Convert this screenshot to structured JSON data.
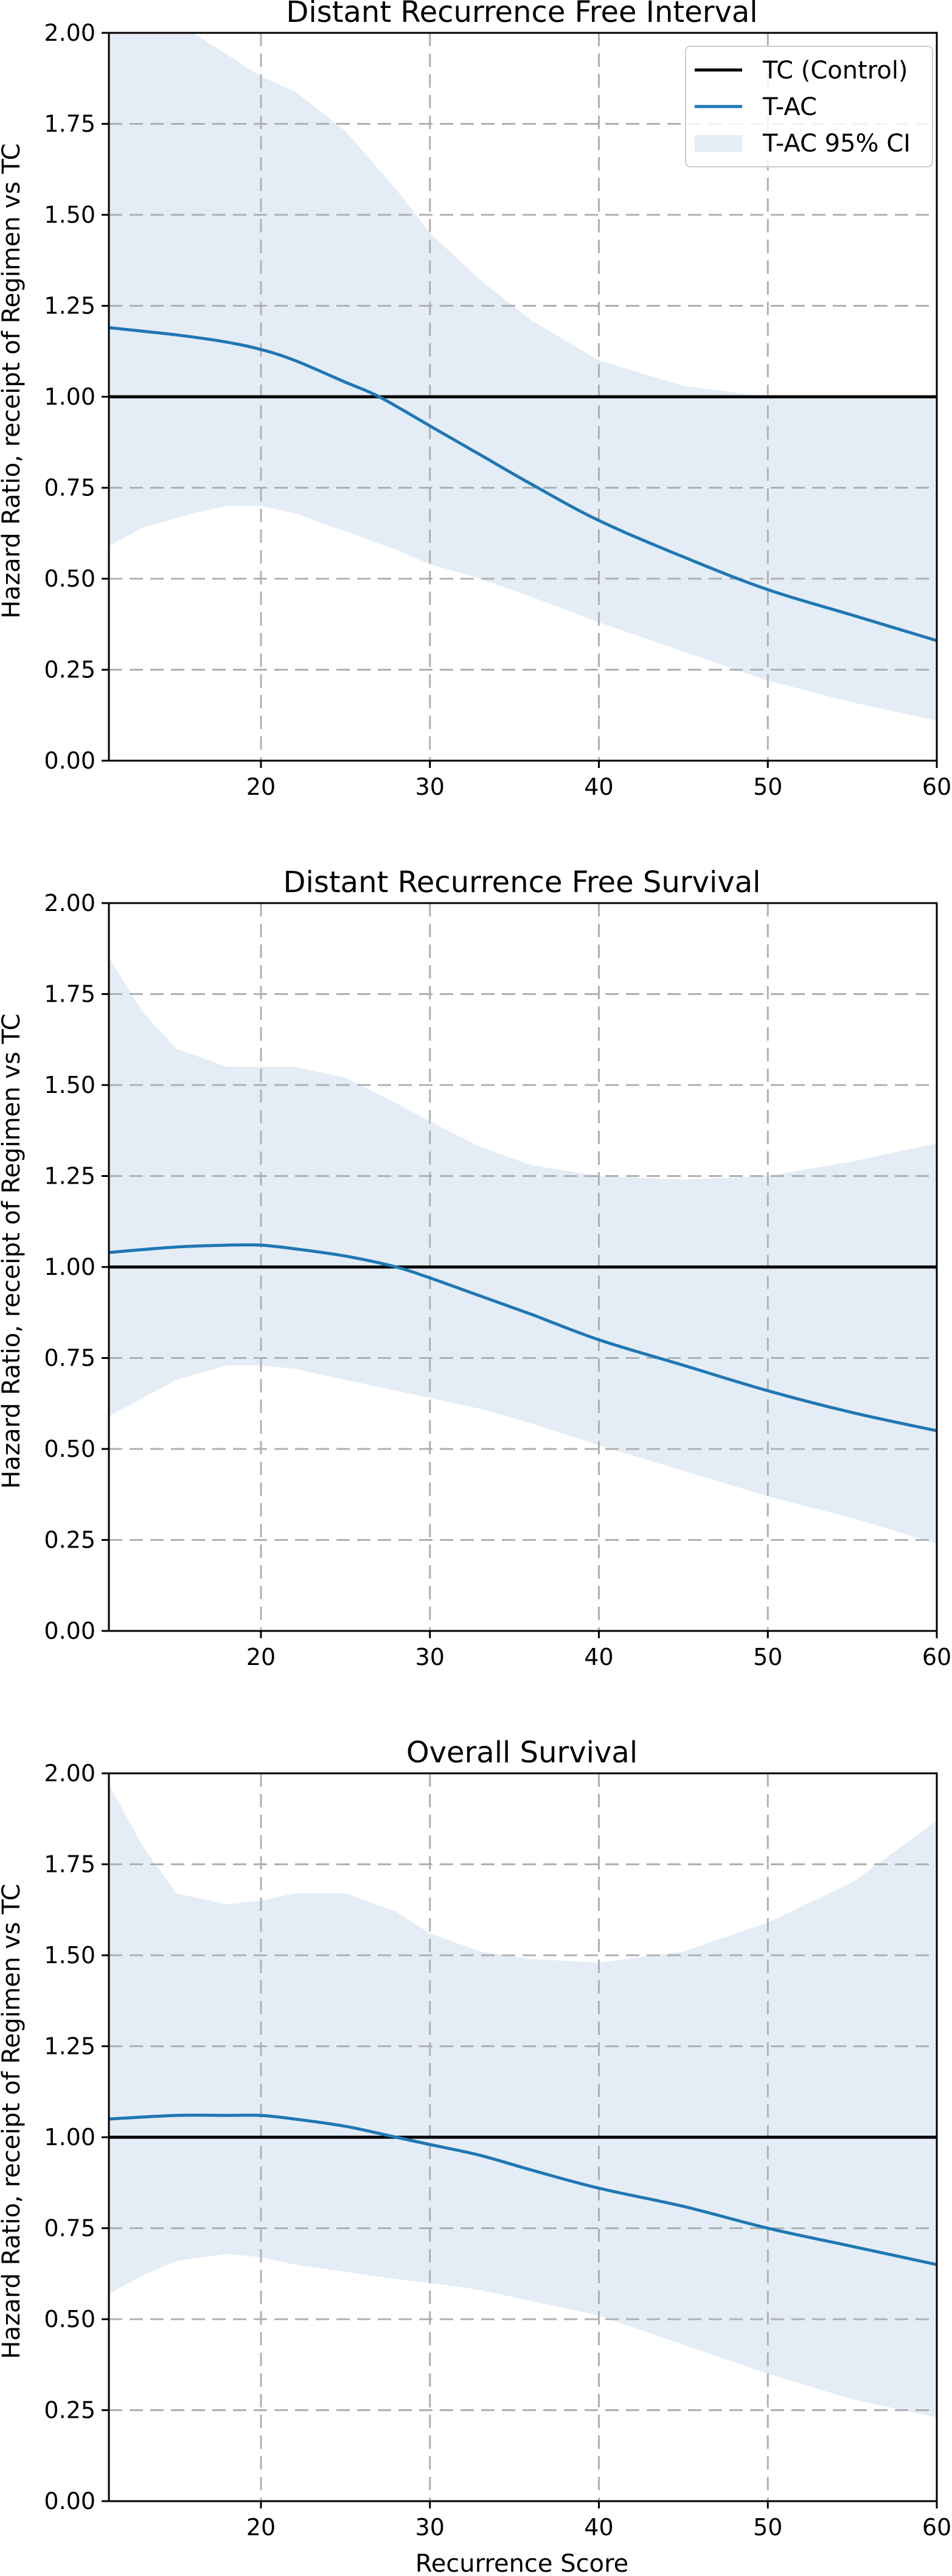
{
  "colors": {
    "control": "#000000",
    "tac": "#1f77b4",
    "ci_fill": "#e4edf6",
    "grid": "#b0b0b0",
    "legend_border": "#cccccc"
  },
  "legend": {
    "placement": "top-right",
    "items": [
      {
        "label": "TC (Control)",
        "kind": "line",
        "color_key": "control"
      },
      {
        "label": "T-AC",
        "kind": "line",
        "color_key": "tac"
      },
      {
        "label": "T-AC 95% CI",
        "kind": "patch",
        "color_key": "ci_fill"
      }
    ]
  },
  "chart_data": [
    {
      "type": "line",
      "title": "Distant Recurrence Free Interval",
      "ylabel": "Hazard Ratio, receipt of Regimen vs TC",
      "xlabel": "",
      "xlim": [
        11,
        60
      ],
      "ylim": [
        0,
        2
      ],
      "x_ticks": [
        "20",
        "30",
        "40",
        "50",
        "60"
      ],
      "y_ticks": [
        "0.00",
        "0.25",
        "0.50",
        "0.75",
        "1.00",
        "1.25",
        "1.50",
        "1.75",
        "2.00"
      ],
      "grid": "dashed vertical at 20,30,40,50; dashed horizontal at y ticks",
      "legend": true,
      "series": [
        {
          "name": "TC (Control)",
          "x": [
            11,
            60
          ],
          "y": [
            1.0,
            1.0
          ]
        },
        {
          "name": "T-AC",
          "x": [
            11,
            15,
            18,
            20,
            22,
            25,
            27,
            30,
            33,
            36,
            40,
            45,
            50,
            55,
            60
          ],
          "y": [
            1.19,
            1.17,
            1.15,
            1.13,
            1.1,
            1.04,
            1.0,
            0.92,
            0.84,
            0.76,
            0.66,
            0.56,
            0.47,
            0.4,
            0.33
          ]
        },
        {
          "name": "T-AC 95% CI",
          "x": [
            11,
            13,
            16,
            18,
            20,
            22,
            25,
            28,
            30,
            33,
            36,
            40,
            45,
            50,
            55,
            60
          ],
          "lower": [
            0.59,
            0.64,
            0.68,
            0.7,
            0.7,
            0.68,
            0.63,
            0.58,
            0.54,
            0.5,
            0.45,
            0.38,
            0.3,
            0.22,
            0.16,
            0.11
          ],
          "upper": [
            2.0,
            2.0,
            2.0,
            1.94,
            1.88,
            1.84,
            1.73,
            1.57,
            1.45,
            1.32,
            1.21,
            1.1,
            1.03,
            1.0,
            1.0,
            1.0
          ]
        }
      ]
    },
    {
      "type": "line",
      "title": "Distant Recurrence Free Survival",
      "ylabel": "Hazard Ratio, receipt of Regimen vs TC",
      "xlabel": "",
      "xlim": [
        11,
        60
      ],
      "ylim": [
        0,
        2
      ],
      "x_ticks": [
        "20",
        "30",
        "40",
        "50",
        "60"
      ],
      "y_ticks": [
        "0.00",
        "0.25",
        "0.50",
        "0.75",
        "1.00",
        "1.25",
        "1.50",
        "1.75",
        "2.00"
      ],
      "grid": "dashed vertical at 20,30,40,50; dashed horizontal at y ticks",
      "legend": false,
      "series": [
        {
          "name": "TC (Control)",
          "x": [
            11,
            60
          ],
          "y": [
            1.0,
            1.0
          ]
        },
        {
          "name": "T-AC",
          "x": [
            11,
            15,
            18,
            20,
            22,
            25,
            28,
            30,
            33,
            36,
            40,
            45,
            50,
            55,
            60
          ],
          "y": [
            1.04,
            1.055,
            1.06,
            1.06,
            1.05,
            1.03,
            1.0,
            0.97,
            0.92,
            0.87,
            0.8,
            0.73,
            0.66,
            0.6,
            0.55
          ]
        },
        {
          "name": "T-AC 95% CI",
          "x": [
            11,
            13,
            15,
            18,
            20,
            22,
            25,
            28,
            30,
            33,
            36,
            40,
            45,
            50,
            55,
            60
          ],
          "lower": [
            0.59,
            0.64,
            0.69,
            0.73,
            0.73,
            0.72,
            0.69,
            0.66,
            0.64,
            0.61,
            0.57,
            0.51,
            0.44,
            0.37,
            0.31,
            0.24
          ],
          "upper": [
            1.85,
            1.7,
            1.6,
            1.55,
            1.55,
            1.55,
            1.52,
            1.45,
            1.4,
            1.33,
            1.28,
            1.25,
            1.24,
            1.25,
            1.29,
            1.34
          ]
        }
      ]
    },
    {
      "type": "line",
      "title": "Overall Survival",
      "ylabel": "Hazard Ratio, receipt of Regimen vs TC",
      "xlabel": "Recurrence Score",
      "xlim": [
        11,
        60
      ],
      "ylim": [
        0,
        2
      ],
      "x_ticks": [
        "20",
        "30",
        "40",
        "50",
        "60"
      ],
      "y_ticks": [
        "0.00",
        "0.25",
        "0.50",
        "0.75",
        "1.00",
        "1.25",
        "1.50",
        "1.75",
        "2.00"
      ],
      "grid": "dashed vertical at 20,30,40,50; dashed horizontal at y ticks",
      "legend": false,
      "series": [
        {
          "name": "TC (Control)",
          "x": [
            11,
            60
          ],
          "y": [
            1.0,
            1.0
          ]
        },
        {
          "name": "T-AC",
          "x": [
            11,
            15,
            18,
            20,
            22,
            25,
            28,
            30,
            33,
            36,
            40,
            45,
            50,
            55,
            60
          ],
          "y": [
            1.05,
            1.06,
            1.06,
            1.06,
            1.05,
            1.03,
            1.0,
            0.98,
            0.95,
            0.91,
            0.86,
            0.81,
            0.75,
            0.7,
            0.65
          ]
        },
        {
          "name": "T-AC 95% CI",
          "x": [
            11,
            13,
            15,
            18,
            20,
            22,
            25,
            28,
            30,
            33,
            36,
            40,
            45,
            50,
            55,
            60
          ],
          "lower": [
            0.57,
            0.62,
            0.66,
            0.68,
            0.67,
            0.65,
            0.63,
            0.61,
            0.6,
            0.58,
            0.55,
            0.51,
            0.43,
            0.35,
            0.28,
            0.23
          ],
          "upper": [
            1.97,
            1.8,
            1.67,
            1.64,
            1.65,
            1.67,
            1.67,
            1.62,
            1.56,
            1.51,
            1.49,
            1.48,
            1.51,
            1.59,
            1.7,
            1.87
          ]
        }
      ]
    }
  ]
}
